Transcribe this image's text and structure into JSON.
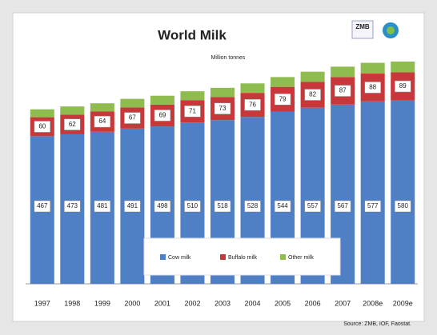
{
  "chart_data": {
    "type": "stacked_bar",
    "title": "World Milk",
    "subtitle": "Million tonnes",
    "logo": "ZMB",
    "source": "Source: ZMB, IOF, Faostat.",
    "categories": [
      "1997",
      "1998",
      "1999",
      "2000",
      "2001",
      "2002",
      "2003",
      "2004",
      "2005",
      "2006",
      "2007",
      "2008e",
      "2009e"
    ],
    "series": [
      {
        "name": "Cow milk",
        "color": "#4f7fc4",
        "values": [
          467,
          473,
          481,
          491,
          498,
          510,
          518,
          528,
          544,
          557,
          567,
          577,
          580
        ]
      },
      {
        "name": "Buffalo milk",
        "color": "#c8373a",
        "values": [
          60,
          62,
          64,
          67,
          69,
          71,
          73,
          76,
          79,
          82,
          87,
          88,
          89
        ]
      },
      {
        "name": "Other milk",
        "color": "#8fbc4f",
        "values": [
          25,
          26,
          26,
          27,
          28,
          28,
          29,
          30,
          31,
          32,
          33,
          34,
          34
        ]
      }
    ],
    "value_label_series": [
      0,
      1
    ],
    "legend": "bottom"
  }
}
